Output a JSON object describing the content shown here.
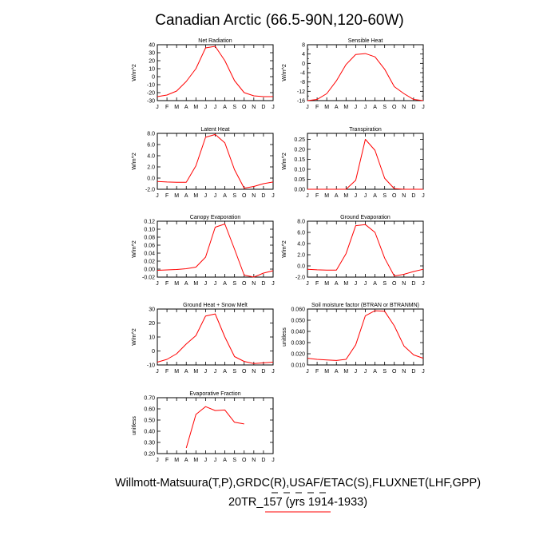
{
  "title": "Canadian Arctic (66.5-90N,120-60W)",
  "footer": {
    "line1": "Willmott-Matsuura(T,P),GRDC(R),USAF/ETAC(S),FLUXNET(LHF,GPP)",
    "line2": "20TR_157 (yrs 1914-1933)"
  },
  "colors": {
    "series": "#ff0000",
    "frame": "#000000",
    "legend_dash": "#000000",
    "legend_line": "#ff0000"
  },
  "months": [
    "J",
    "F",
    "M",
    "A",
    "M",
    "J",
    "J",
    "A",
    "S",
    "O",
    "N",
    "D",
    "J"
  ],
  "chart_data": [
    {
      "type": "line",
      "title": "Net Radiation",
      "ylabel": "W/m^2",
      "ylim": [
        -30,
        40
      ],
      "yticks": [
        -30,
        -20,
        -10,
        0,
        10,
        20,
        30,
        40
      ],
      "ytick_labels": [
        "-30",
        "-20",
        "-10",
        "0",
        "10",
        "20",
        "30",
        "40"
      ],
      "x": [
        1,
        2,
        3,
        4,
        5,
        6,
        7,
        8,
        9,
        10,
        11,
        12,
        13
      ],
      "values": [
        -25,
        -23,
        -18,
        -6,
        10,
        36,
        38,
        20,
        -5,
        -20,
        -24,
        -25,
        -25
      ]
    },
    {
      "type": "line",
      "title": "Sensible Heat",
      "ylabel": "W/m^2",
      "ylim": [
        -16,
        8
      ],
      "yticks": [
        -16,
        -12,
        -8,
        -4,
        0,
        4,
        8
      ],
      "ytick_labels": [
        "-16",
        "-12",
        "-8",
        "-4",
        "0",
        "4",
        "8"
      ],
      "minor_yticks": [
        -14,
        -10,
        -6,
        -2,
        2,
        6
      ],
      "x": [
        1,
        2,
        3,
        4,
        5,
        6,
        7,
        8,
        9,
        10,
        11,
        12,
        13
      ],
      "values": [
        -16,
        -15.5,
        -13,
        -7.5,
        -0.5,
        3.8,
        4.2,
        2.8,
        -2.5,
        -10,
        -13,
        -15.5,
        -16
      ]
    },
    {
      "type": "line",
      "title": "Latent Heat",
      "ylabel": "W/m^2",
      "ylim": [
        -2,
        8
      ],
      "yticks": [
        -2,
        0,
        2,
        4,
        6,
        8
      ],
      "ytick_labels": [
        "-2.0",
        "0.0",
        "2.0",
        "4.0",
        "6.0",
        "8.0"
      ],
      "x": [
        1,
        2,
        3,
        4,
        5,
        6,
        7,
        8,
        9,
        10,
        11,
        12,
        13
      ],
      "values": [
        -0.6,
        -0.7,
        -0.75,
        -0.75,
        2.2,
        7.3,
        7.8,
        6.3,
        1.5,
        -1.8,
        -1.5,
        -1.0,
        -0.7
      ]
    },
    {
      "type": "line",
      "title": "Transpiration",
      "ylabel": "W/m^2",
      "ylim": [
        0,
        0.28
      ],
      "yticks": [
        0,
        0.05,
        0.1,
        0.15,
        0.2,
        0.25
      ],
      "ytick_labels": [
        "0.00",
        "0.05",
        "0.10",
        "0.15",
        "0.20",
        "0.25"
      ],
      "x": [
        1,
        2,
        3,
        4,
        5,
        6,
        7,
        8,
        9,
        10,
        11,
        12,
        13
      ],
      "values": [
        0,
        0,
        0,
        0,
        0,
        0.045,
        0.25,
        0.195,
        0.055,
        0.003,
        0,
        0,
        0
      ]
    },
    {
      "type": "line",
      "title": "Canopy Evaporation",
      "ylabel": "W/m^2",
      "ylim": [
        -0.02,
        0.12
      ],
      "yticks": [
        -0.02,
        0,
        0.02,
        0.04,
        0.06,
        0.08,
        0.1,
        0.12
      ],
      "ytick_labels": [
        "-0.02",
        "0.00",
        "0.02",
        "0.04",
        "0.06",
        "0.08",
        "0.10",
        "0.12"
      ],
      "x": [
        1,
        2,
        3,
        4,
        5,
        6,
        7,
        8,
        9,
        10,
        11,
        12,
        13
      ],
      "values": [
        -0.003,
        -0.002,
        -0.001,
        0.001,
        0.005,
        0.03,
        0.105,
        0.113,
        0.05,
        -0.015,
        -0.02,
        -0.01,
        -0.004
      ]
    },
    {
      "type": "line",
      "title": "Ground Evaporation",
      "ylabel": "W/m^2",
      "ylim": [
        -2,
        8
      ],
      "yticks": [
        -2,
        0,
        2,
        4,
        6,
        8
      ],
      "ytick_labels": [
        "-2.0",
        "0.0",
        "2.0",
        "4.0",
        "6.0",
        "8.0"
      ],
      "x": [
        1,
        2,
        3,
        4,
        5,
        6,
        7,
        8,
        9,
        10,
        11,
        12,
        13
      ],
      "values": [
        -0.6,
        -0.7,
        -0.75,
        -0.75,
        2.2,
        7.2,
        7.4,
        6.0,
        1.4,
        -1.8,
        -1.5,
        -1.0,
        -0.6
      ]
    },
    {
      "type": "line",
      "title": "Ground Heat + Snow Melt",
      "ylabel": "W/m^2",
      "ylim": [
        -10,
        30
      ],
      "yticks": [
        -10,
        0,
        10,
        20,
        30
      ],
      "ytick_labels": [
        "-10",
        "0",
        "10",
        "20",
        "30"
      ],
      "x": [
        1,
        2,
        3,
        4,
        5,
        6,
        7,
        8,
        9,
        10,
        11,
        12,
        13
      ],
      "values": [
        -8,
        -6,
        -2,
        5,
        11,
        25,
        26.5,
        10,
        -4,
        -7.5,
        -9,
        -8.5,
        -8
      ]
    },
    {
      "type": "line",
      "title": "Soil moisture factor (BTRAN or BTRANMN)",
      "ylabel": "unitless",
      "ylim": [
        0.01,
        0.06
      ],
      "yticks": [
        0.01,
        0.02,
        0.03,
        0.04,
        0.05,
        0.06
      ],
      "ytick_labels": [
        "0.010",
        "0.020",
        "0.030",
        "0.040",
        "0.050",
        "0.060"
      ],
      "x": [
        1,
        2,
        3,
        4,
        5,
        6,
        7,
        8,
        9,
        10,
        11,
        12,
        13
      ],
      "values": [
        0.016,
        0.015,
        0.0145,
        0.014,
        0.015,
        0.028,
        0.054,
        0.0585,
        0.058,
        0.045,
        0.027,
        0.019,
        0.016
      ]
    },
    {
      "type": "line",
      "title": "Evaporative Fraction",
      "ylabel": "unitless",
      "ylim": [
        0.2,
        0.7
      ],
      "yticks": [
        0.2,
        0.3,
        0.4,
        0.5,
        0.6,
        0.7
      ],
      "ytick_labels": [
        "0.20",
        "0.30",
        "0.40",
        "0.50",
        "0.60",
        "0.70"
      ],
      "x": [
        4,
        5,
        6,
        7,
        8,
        9,
        10
      ],
      "values": [
        0.25,
        0.55,
        0.62,
        0.585,
        0.59,
        0.48,
        0.465
      ]
    }
  ]
}
